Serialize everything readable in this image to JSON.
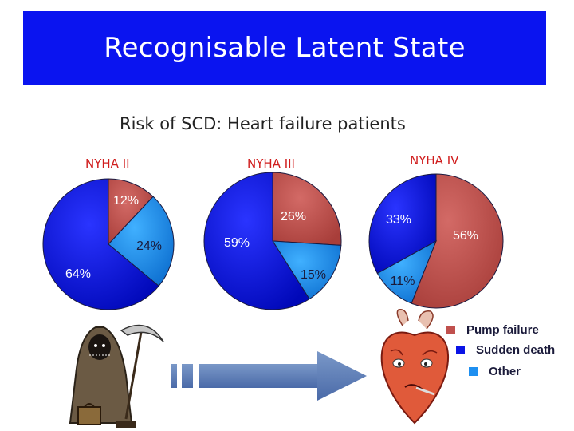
{
  "slide": {
    "title": "Recognisable Latent State",
    "subtitle": "Risk of SCD: Heart failure patients",
    "title_color": "#ffffff",
    "banner_color": "#0a14f0"
  },
  "legend": {
    "items": [
      {
        "label": "Pump failure",
        "color": "#c0504d"
      },
      {
        "label": "Sudden death",
        "color": "#0a14e6"
      },
      {
        "label": "Other",
        "color": "#1e8ff0"
      }
    ]
  },
  "illustrations": {
    "grim_reaper_icon": "grim-reaper-cartoon",
    "arrow_icon": "dashed-right-arrow",
    "heart_icon": "sick-heart-cartoon"
  },
  "chart_data": [
    {
      "type": "pie",
      "title": "NYHA II",
      "labels": [
        "Pump failure",
        "Other",
        "Sudden death"
      ],
      "values": [
        12,
        24,
        64
      ],
      "value_labels": [
        "12%",
        "24%",
        "64%"
      ],
      "title_color": "#d01c1c"
    },
    {
      "type": "pie",
      "title": "NYHA III",
      "labels": [
        "Pump failure",
        "Other",
        "Sudden death"
      ],
      "values": [
        26,
        15,
        59
      ],
      "value_labels": [
        "26%",
        "15%",
        "59%"
      ],
      "title_color": "#d01c1c"
    },
    {
      "type": "pie",
      "title": "NYHA IV",
      "labels": [
        "Pump failure",
        "Other",
        "Sudden death"
      ],
      "values": [
        56,
        11,
        33
      ],
      "value_labels": [
        "56%",
        "11%",
        "33%"
      ],
      "title_color": "#d01c1c"
    }
  ]
}
